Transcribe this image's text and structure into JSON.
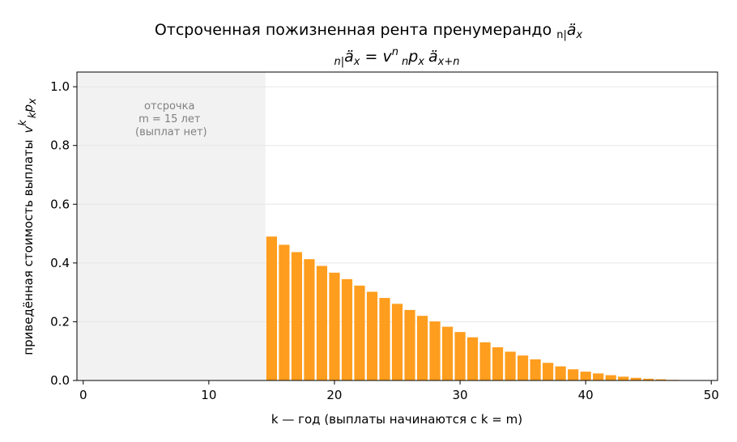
{
  "chart_data": {
    "type": "bar",
    "title": "Отсроченная пожизненная рента пренумерандо",
    "title_symbol": {
      "pre": "n|",
      "main": "ä",
      "sub": "x"
    },
    "formula": "n|äx = v^n npx äx+n",
    "formula_parts": {
      "lhs_pre": "n|",
      "lhs_main": "ä",
      "lhs_sub": "x",
      "eq": " = ",
      "v": "v",
      "v_sup": "n",
      "p_pre": "n",
      "p_main": "p",
      "p_sub": "x",
      "a_main": "ä",
      "a_sub": "x+n"
    },
    "xlabel": "k — год (выплаты начинаются с k = m)",
    "ylabel": "приведённая стоимость выплаты",
    "ylabel_symbol": {
      "main": "v",
      "sup": "k",
      "pre": "k",
      "p": "p",
      "sub": "x"
    },
    "xlim": [
      -0.5,
      50.5
    ],
    "ylim": [
      0,
      1.05
    ],
    "xticks": [
      "0",
      "10",
      "20",
      "30",
      "40",
      "50"
    ],
    "yticks": [
      "0.0",
      "0.2",
      "0.4",
      "0.6",
      "0.8",
      "1.0"
    ],
    "grid": "horizontal",
    "bar_color": "#ff9d1e",
    "deferral_region": {
      "from": -0.5,
      "to": 14.5,
      "color": "#f2f2f2"
    },
    "annotation": [
      "отсрочка",
      "m = 15 лет",
      "(выплат нет)"
    ],
    "x": [
      15,
      16,
      17,
      18,
      19,
      20,
      21,
      22,
      23,
      24,
      25,
      26,
      27,
      28,
      29,
      30,
      31,
      32,
      33,
      34,
      35,
      36,
      37,
      38,
      39,
      40,
      41,
      42,
      43,
      44,
      45,
      46,
      47,
      48
    ],
    "values": [
      0.49,
      0.462,
      0.437,
      0.413,
      0.39,
      0.367,
      0.345,
      0.323,
      0.302,
      0.281,
      0.261,
      0.24,
      0.22,
      0.201,
      0.183,
      0.165,
      0.147,
      0.13,
      0.113,
      0.098,
      0.085,
      0.072,
      0.06,
      0.048,
      0.038,
      0.03,
      0.024,
      0.018,
      0.013,
      0.009,
      0.006,
      0.004,
      0.002,
      0.001
    ]
  }
}
